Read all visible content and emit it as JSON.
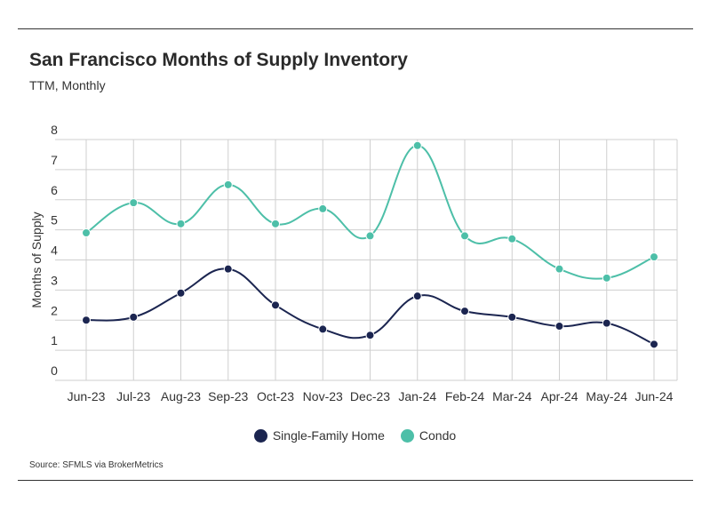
{
  "chart_data": {
    "type": "line",
    "title": "San Francisco Months of Supply Inventory",
    "subtitle": "TTM, Monthly",
    "ylabel": "Months of Supply",
    "xlabel": "",
    "ylim": [
      0,
      8
    ],
    "yticks": [
      0,
      1,
      2,
      3,
      4,
      5,
      6,
      7,
      8
    ],
    "categories": [
      "Jun-23",
      "Jul-23",
      "Aug-23",
      "Sep-23",
      "Oct-23",
      "Nov-23",
      "Dec-23",
      "Jan-24",
      "Feb-24",
      "Mar-24",
      "Apr-24",
      "May-24",
      "Jun-24"
    ],
    "series": [
      {
        "name": "Single-Family Home",
        "color": "#1b2550",
        "values": [
          2.0,
          2.1,
          2.9,
          3.7,
          2.5,
          1.7,
          1.5,
          2.8,
          2.3,
          2.1,
          1.8,
          1.9,
          1.2
        ]
      },
      {
        "name": "Condo",
        "color": "#4dbfa8",
        "values": [
          4.9,
          5.9,
          5.2,
          6.5,
          5.2,
          5.7,
          4.8,
          7.8,
          4.8,
          4.7,
          3.7,
          3.4,
          4.1
        ]
      }
    ],
    "legend_position": "bottom",
    "grid": true
  },
  "source": "Source:  SFMLS via BrokerMetrics"
}
